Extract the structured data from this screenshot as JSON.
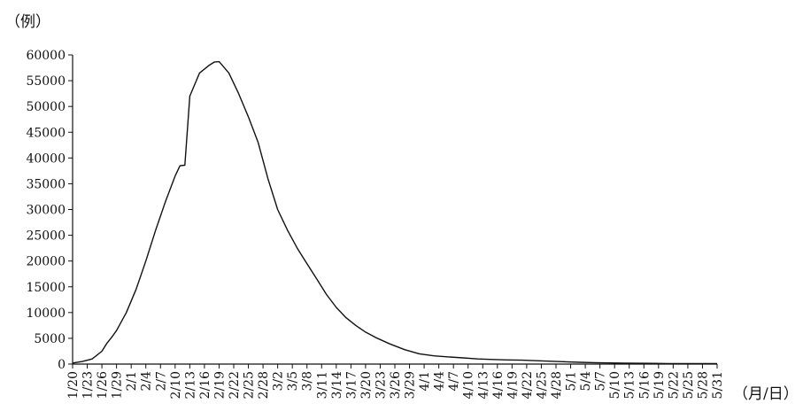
{
  "chart_data": {
    "type": "line",
    "y_unit_label": "（例）",
    "x_unit_label": "（月/日）",
    "x_tick_labels": [
      "1/20",
      "1/23",
      "1/26",
      "1/29",
      "2/1",
      "2/4",
      "2/7",
      "2/10",
      "2/13",
      "2/16",
      "2/19",
      "2/22",
      "2/25",
      "2/28",
      "3/2",
      "3/5",
      "3/8",
      "3/11",
      "3/14",
      "3/17",
      "3/20",
      "3/23",
      "3/26",
      "3/29",
      "4/1",
      "4/4",
      "4/7",
      "4/10",
      "4/13",
      "4/16",
      "4/19",
      "4/22",
      "4/25",
      "4/28",
      "5/1",
      "5/4",
      "5/7",
      "5/10",
      "5/13",
      "5/16",
      "5/19",
      "5/22",
      "5/25",
      "5/28",
      "5/31"
    ],
    "ylim": [
      0,
      60000
    ],
    "yticks": [
      0,
      5000,
      10000,
      15000,
      20000,
      25000,
      30000,
      35000,
      40000,
      45000,
      50000,
      55000,
      60000
    ],
    "grid": false,
    "series": [
      {
        "x": [
          "1/20",
          "1/22",
          "1/24",
          "1/26",
          "1/27",
          "1/28",
          "1/29",
          "1/31",
          "2/2",
          "2/4",
          "2/6",
          "2/8",
          "2/10",
          "2/11",
          "2/12",
          "2/13",
          "2/15",
          "2/17",
          "2/18",
          "2/19",
          "2/21",
          "2/23",
          "2/25",
          "2/27",
          "2/29",
          "3/2",
          "3/4",
          "3/6",
          "3/8",
          "3/10",
          "3/12",
          "3/14",
          "3/16",
          "3/18",
          "3/20",
          "3/22",
          "3/25",
          "3/28",
          "3/31",
          "4/3",
          "4/6",
          "4/9",
          "4/12",
          "4/15",
          "4/18",
          "4/21",
          "4/24",
          "4/27",
          "4/30",
          "5/3",
          "5/6",
          "5/9",
          "5/12",
          "5/15",
          "5/18",
          "5/21",
          "5/24",
          "5/27",
          "5/31"
        ],
        "values": [
          200,
          500,
          1000,
          2500,
          4000,
          5200,
          6500,
          10000,
          14500,
          20000,
          26000,
          31500,
          36500,
          38500,
          38600,
          52000,
          56500,
          58000,
          58600,
          58700,
          56500,
          52500,
          48000,
          43000,
          36000,
          30000,
          26000,
          22500,
          19500,
          16500,
          13500,
          11000,
          9000,
          7500,
          6200,
          5200,
          3900,
          2800,
          2000,
          1600,
          1400,
          1200,
          1000,
          900,
          800,
          750,
          650,
          550,
          450,
          350,
          280,
          220,
          180,
          150,
          130,
          110,
          100,
          90,
          80
        ]
      }
    ]
  }
}
